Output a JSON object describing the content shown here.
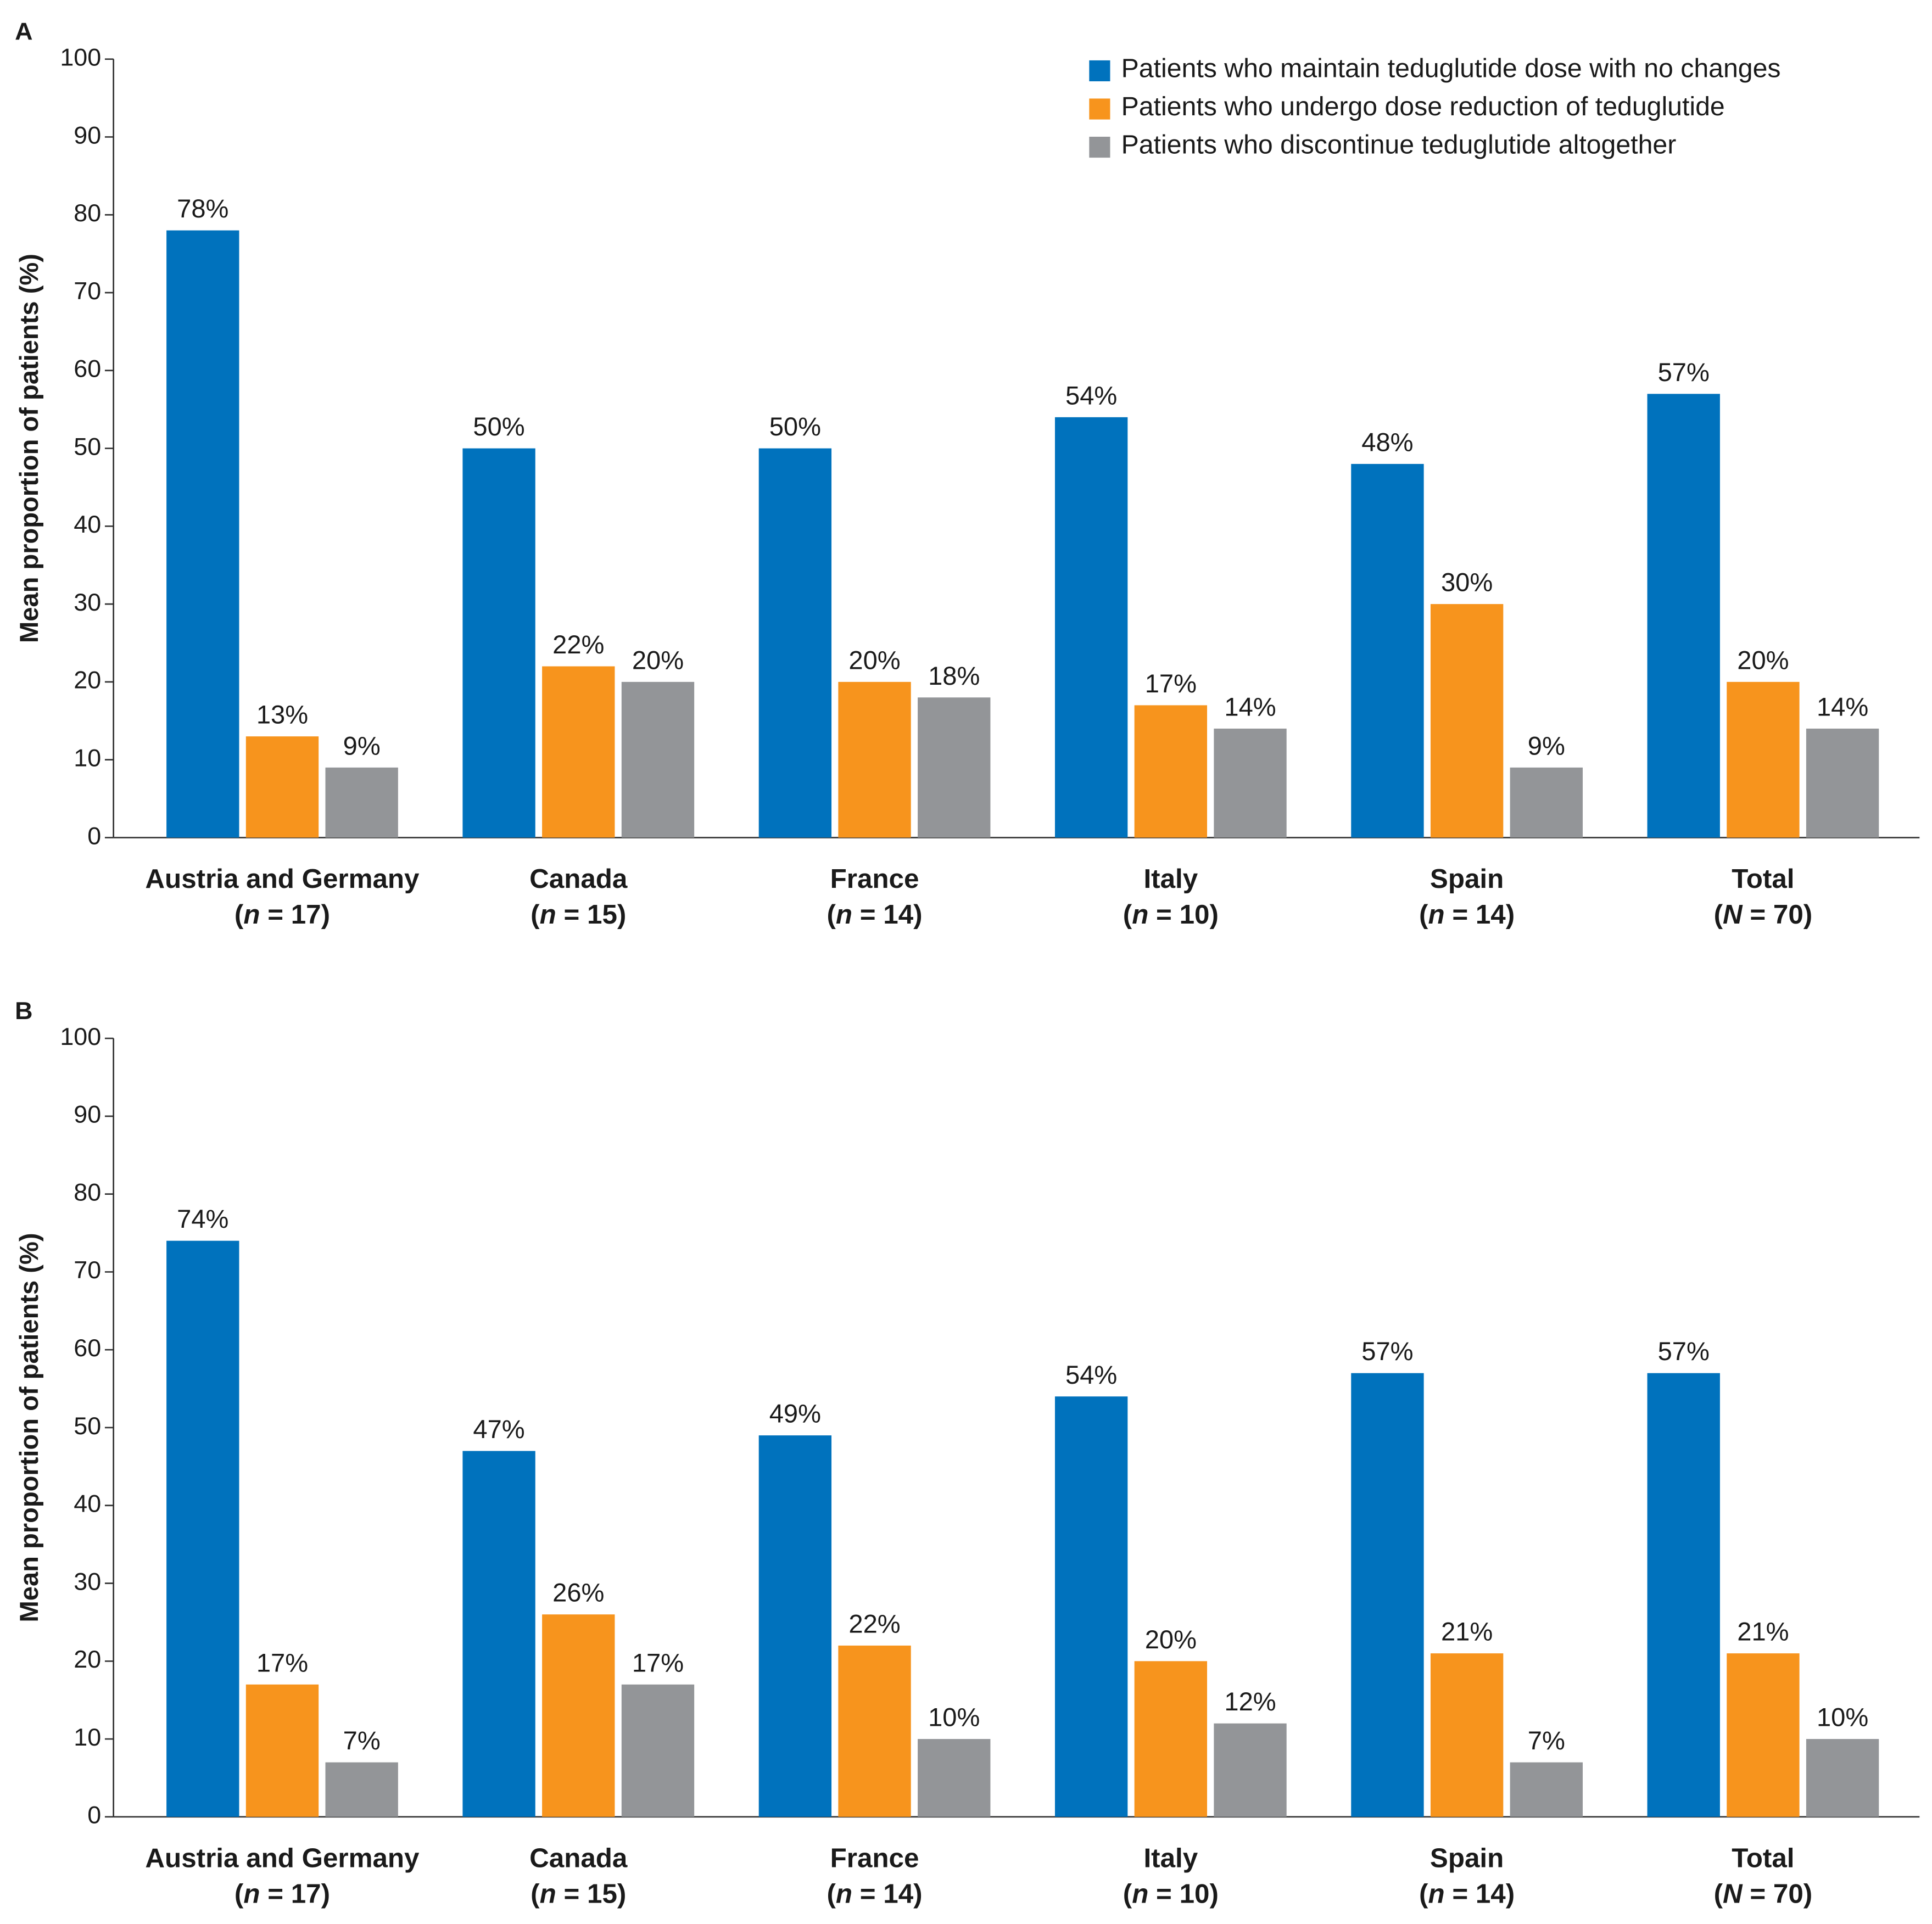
{
  "chart_data": [
    {
      "type": "bar",
      "panel_label": "A",
      "y_label": "Mean proportion of patients (%)",
      "categories": [
        "Austria and Germany",
        "Canada",
        "France",
        "Italy",
        "Spain",
        "Total"
      ],
      "sample_sizes": [
        "(n = 17)",
        "(n = 15)",
        "(n = 14)",
        "(n = 10)",
        "(n = 14)",
        "(N = 70)"
      ],
      "ylim": [
        0,
        100
      ],
      "yticks": [
        0,
        10,
        20,
        30,
        40,
        50,
        60,
        70,
        80,
        90,
        100
      ],
      "legend": "top-right",
      "series": [
        {
          "name": "Patients who maintain teduglutide dose with no changes",
          "color": "#0072bd",
          "values": [
            78,
            50,
            50,
            54,
            48,
            57
          ],
          "value_labels": [
            "78%",
            "50%",
            "50%",
            "54%",
            "48%",
            "57%"
          ]
        },
        {
          "name": "Patients who undergo dose reduction of teduglutide",
          "color": "#f7941d",
          "values": [
            13,
            22,
            20,
            17,
            30,
            20
          ],
          "value_labels": [
            "13%",
            "22%",
            "20%",
            "17%",
            "30%",
            "20%"
          ]
        },
        {
          "name": "Patients who discontinue teduglutide altogether",
          "color": "#939598",
          "values": [
            9,
            20,
            18,
            14,
            9,
            14
          ],
          "value_labels": [
            "9%",
            "20%",
            "18%",
            "14%",
            "9%",
            "14%"
          ]
        }
      ]
    },
    {
      "type": "bar",
      "panel_label": "B",
      "y_label": "Mean proportion of patients (%)",
      "categories": [
        "Austria and Germany",
        "Canada",
        "France",
        "Italy",
        "Spain",
        "Total"
      ],
      "sample_sizes": [
        "(n = 17)",
        "(n = 15)",
        "(n = 14)",
        "(n = 10)",
        "(n = 14)",
        "(N = 70)"
      ],
      "ylim": [
        0,
        100
      ],
      "yticks": [
        0,
        10,
        20,
        30,
        40,
        50,
        60,
        70,
        80,
        90,
        100
      ],
      "series": [
        {
          "color": "#0072bd",
          "values": [
            74,
            47,
            49,
            54,
            57,
            57
          ],
          "value_labels": [
            "74%",
            "47%",
            "49%",
            "54%",
            "57%",
            "57%"
          ]
        },
        {
          "color": "#f7941d",
          "values": [
            17,
            26,
            22,
            20,
            21,
            21
          ],
          "value_labels": [
            "17%",
            "26%",
            "22%",
            "20%",
            "21%",
            "21%"
          ]
        },
        {
          "color": "#939598",
          "values": [
            7,
            17,
            10,
            12,
            7,
            10
          ],
          "value_labels": [
            "7%",
            "17%",
            "10%",
            "12%",
            "7%",
            "10%"
          ]
        }
      ]
    }
  ]
}
